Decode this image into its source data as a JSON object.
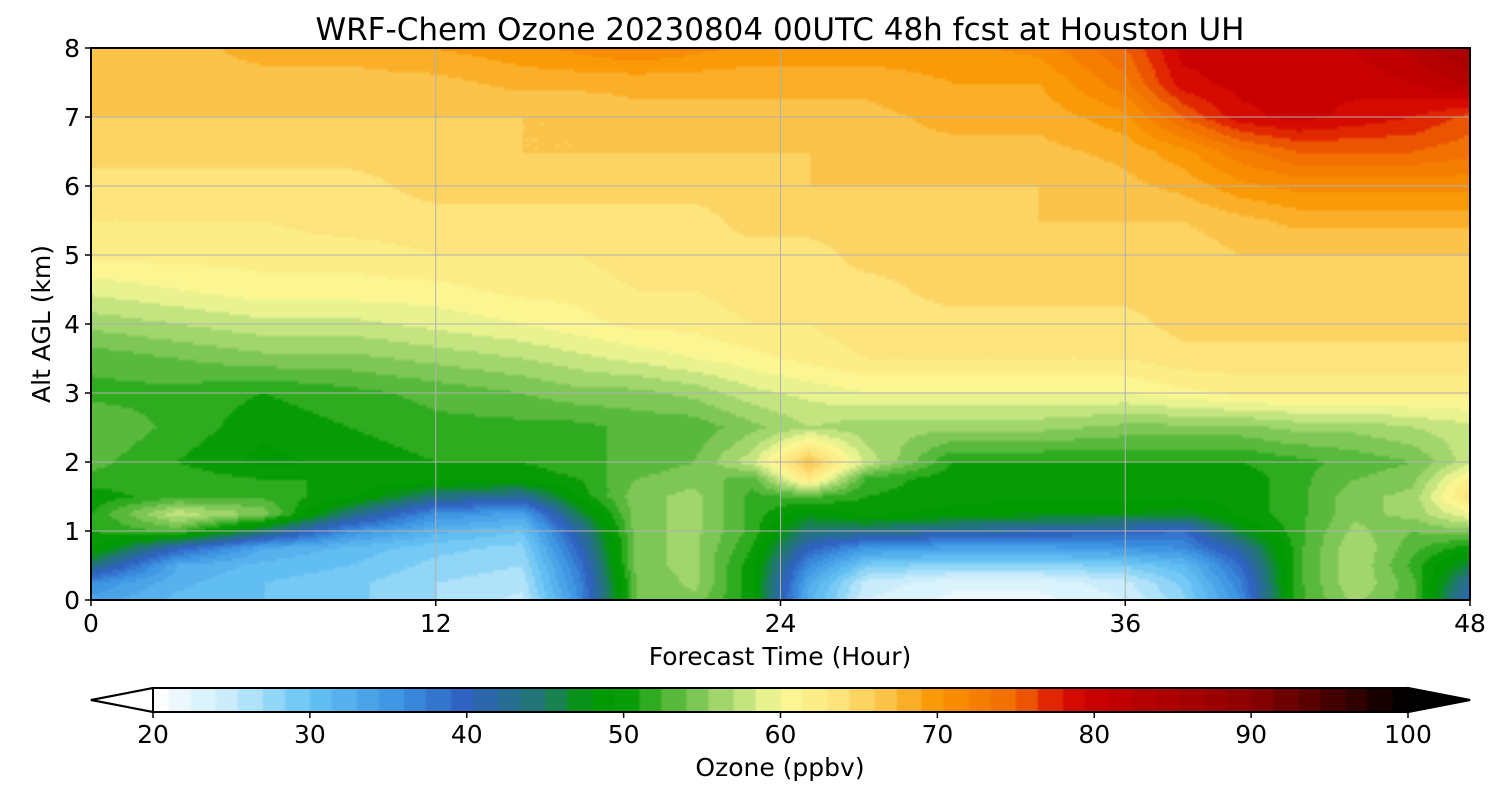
{
  "chart_data": {
    "type": "heatmap",
    "title": "WRF-Chem Ozone  20230804 00UTC 48h fcst at Houston UH",
    "xlabel": "Forecast Time (Hour)",
    "ylabel": "Alt AGL (km)",
    "xlim": [
      0,
      48
    ],
    "ylim": [
      0,
      8
    ],
    "x_ticks": [
      "0",
      "12",
      "24",
      "36",
      "48"
    ],
    "y_ticks": [
      "0",
      "1",
      "2",
      "3",
      "4",
      "5",
      "6",
      "7",
      "8"
    ],
    "grid": true,
    "x": [
      0,
      3,
      6,
      9,
      12,
      15,
      17,
      19,
      21,
      23,
      25,
      27,
      30,
      33,
      36,
      38,
      40,
      42,
      44,
      46,
      48
    ],
    "y": [
      0,
      0.25,
      0.5,
      0.75,
      1,
      1.25,
      1.5,
      1.75,
      2,
      2.5,
      3,
      3.5,
      4,
      4.5,
      5,
      5.5,
      6,
      6.5,
      7,
      7.5,
      8
    ],
    "z": [
      [
        34,
        31,
        30,
        29,
        27,
        25,
        36,
        54,
        55,
        50,
        32,
        24,
        22,
        22,
        24,
        28,
        36,
        52,
        56,
        53,
        40
      ],
      [
        36,
        32,
        30,
        29,
        27,
        26,
        37,
        54,
        56,
        50,
        33,
        25,
        23,
        23,
        25,
        29,
        37,
        52,
        57,
        53,
        42
      ],
      [
        44,
        33,
        31,
        30,
        28,
        27,
        38,
        55,
        56,
        50,
        36,
        29,
        28,
        28,
        29,
        31,
        39,
        52,
        57,
        52,
        46
      ],
      [
        50,
        40,
        33,
        31,
        29,
        28,
        40,
        55,
        56,
        51,
        40,
        35,
        34,
        34,
        35,
        36,
        42,
        52,
        57,
        53,
        50
      ],
      [
        51,
        53,
        45,
        36,
        32,
        30,
        42,
        55,
        56,
        52,
        44,
        44,
        42,
        41,
        40,
        39,
        47,
        52,
        56,
        54,
        55
      ],
      [
        51,
        58,
        55,
        44,
        36,
        34,
        46,
        55,
        56,
        52,
        48,
        50,
        49,
        48,
        48,
        47,
        50,
        52,
        55,
        56,
        60
      ],
      [
        50,
        52,
        52,
        50,
        44,
        42,
        50,
        55,
        56,
        52,
        53,
        51,
        50,
        50,
        50,
        50,
        50,
        52,
        55,
        56,
        64
      ],
      [
        52,
        52,
        51,
        51,
        50,
        50,
        51,
        54,
        55,
        53,
        63,
        52,
        50,
        50,
        50,
        50,
        50,
        52,
        54,
        55,
        62
      ],
      [
        53,
        51,
        49,
        50,
        51,
        51,
        52,
        53,
        54,
        58,
        67,
        58,
        51,
        51,
        51,
        51,
        51,
        52,
        53,
        54,
        58
      ],
      [
        54,
        52,
        50,
        51,
        52,
        52,
        52,
        53,
        53,
        55,
        57,
        56,
        56,
        56,
        55,
        55,
        55,
        56,
        56,
        57,
        58
      ],
      [
        52,
        52,
        51,
        52,
        53,
        54,
        55,
        55,
        56,
        58,
        59,
        60,
        60,
        60,
        60,
        61,
        62,
        62,
        62,
        62,
        62
      ],
      [
        53,
        54,
        55,
        55,
        56,
        57,
        58,
        59,
        60,
        61,
        62,
        63,
        63,
        63,
        63,
        64,
        64,
        64,
        64,
        64,
        64
      ],
      [
        56,
        57,
        58,
        58,
        59,
        60,
        61,
        62,
        62,
        63,
        63,
        64,
        64,
        64,
        64,
        65,
        65,
        65,
        65,
        65,
        65
      ],
      [
        59,
        60,
        61,
        61,
        61,
        62,
        62,
        63,
        63,
        64,
        64,
        64,
        65,
        65,
        65,
        65,
        65,
        65,
        65,
        65,
        65
      ],
      [
        62,
        62,
        62,
        62,
        63,
        63,
        63,
        64,
        64,
        64,
        64,
        65,
        65,
        65,
        65,
        65,
        66,
        66,
        66,
        66,
        66
      ],
      [
        63,
        63,
        63,
        64,
        64,
        64,
        64,
        64,
        64,
        65,
        65,
        65,
        65,
        66,
        66,
        66,
        67,
        68,
        68,
        68,
        68
      ],
      [
        64,
        64,
        64,
        64,
        65,
        65,
        65,
        65,
        65,
        65,
        66,
        66,
        66,
        66,
        67,
        68,
        70,
        71,
        71,
        71,
        71
      ],
      [
        65,
        65,
        65,
        65,
        65,
        66,
        66,
        66,
        66,
        66,
        66,
        67,
        67,
        67,
        68,
        70,
        73,
        75,
        75,
        75,
        74
      ],
      [
        66,
        66,
        66,
        66,
        66,
        66,
        66,
        67,
        67,
        67,
        67,
        67,
        68,
        68,
        70,
        75,
        79,
        80,
        79,
        78,
        76
      ],
      [
        67,
        67,
        67,
        67,
        67,
        68,
        68,
        68,
        68,
        68,
        68,
        68,
        69,
        69,
        73,
        79,
        80,
        80,
        80,
        81,
        83
      ],
      [
        67,
        67,
        68,
        68,
        69,
        70,
        71,
        72,
        71,
        70,
        70,
        70,
        70,
        71,
        75,
        80,
        80,
        80,
        81,
        83,
        86
      ]
    ],
    "colorbar": {
      "label": "Ozone  (ppbv)",
      "min": 20,
      "max": 100,
      "ticks": [
        "20",
        "30",
        "40",
        "50",
        "60",
        "70",
        "80",
        "90",
        "100"
      ],
      "extend": "both",
      "colors": [
        [
          20,
          "#ffffff"
        ],
        [
          25,
          "#c8ecfb"
        ],
        [
          30,
          "#66c4f4"
        ],
        [
          36,
          "#3a90e0"
        ],
        [
          40,
          "#3060c0"
        ],
        [
          45,
          "#1f7a6a"
        ],
        [
          48,
          "#009a00"
        ],
        [
          50,
          "#009a00"
        ],
        [
          54,
          "#6cc04a"
        ],
        [
          57,
          "#b2dc78"
        ],
        [
          60,
          "#fafa98"
        ],
        [
          64,
          "#fde27a"
        ],
        [
          67,
          "#fbc044"
        ],
        [
          70,
          "#fa9600"
        ],
        [
          75,
          "#f06a00"
        ],
        [
          78,
          "#dc1000"
        ],
        [
          80,
          "#c80000"
        ],
        [
          90,
          "#8c0000"
        ],
        [
          100,
          "#000000"
        ]
      ]
    }
  }
}
